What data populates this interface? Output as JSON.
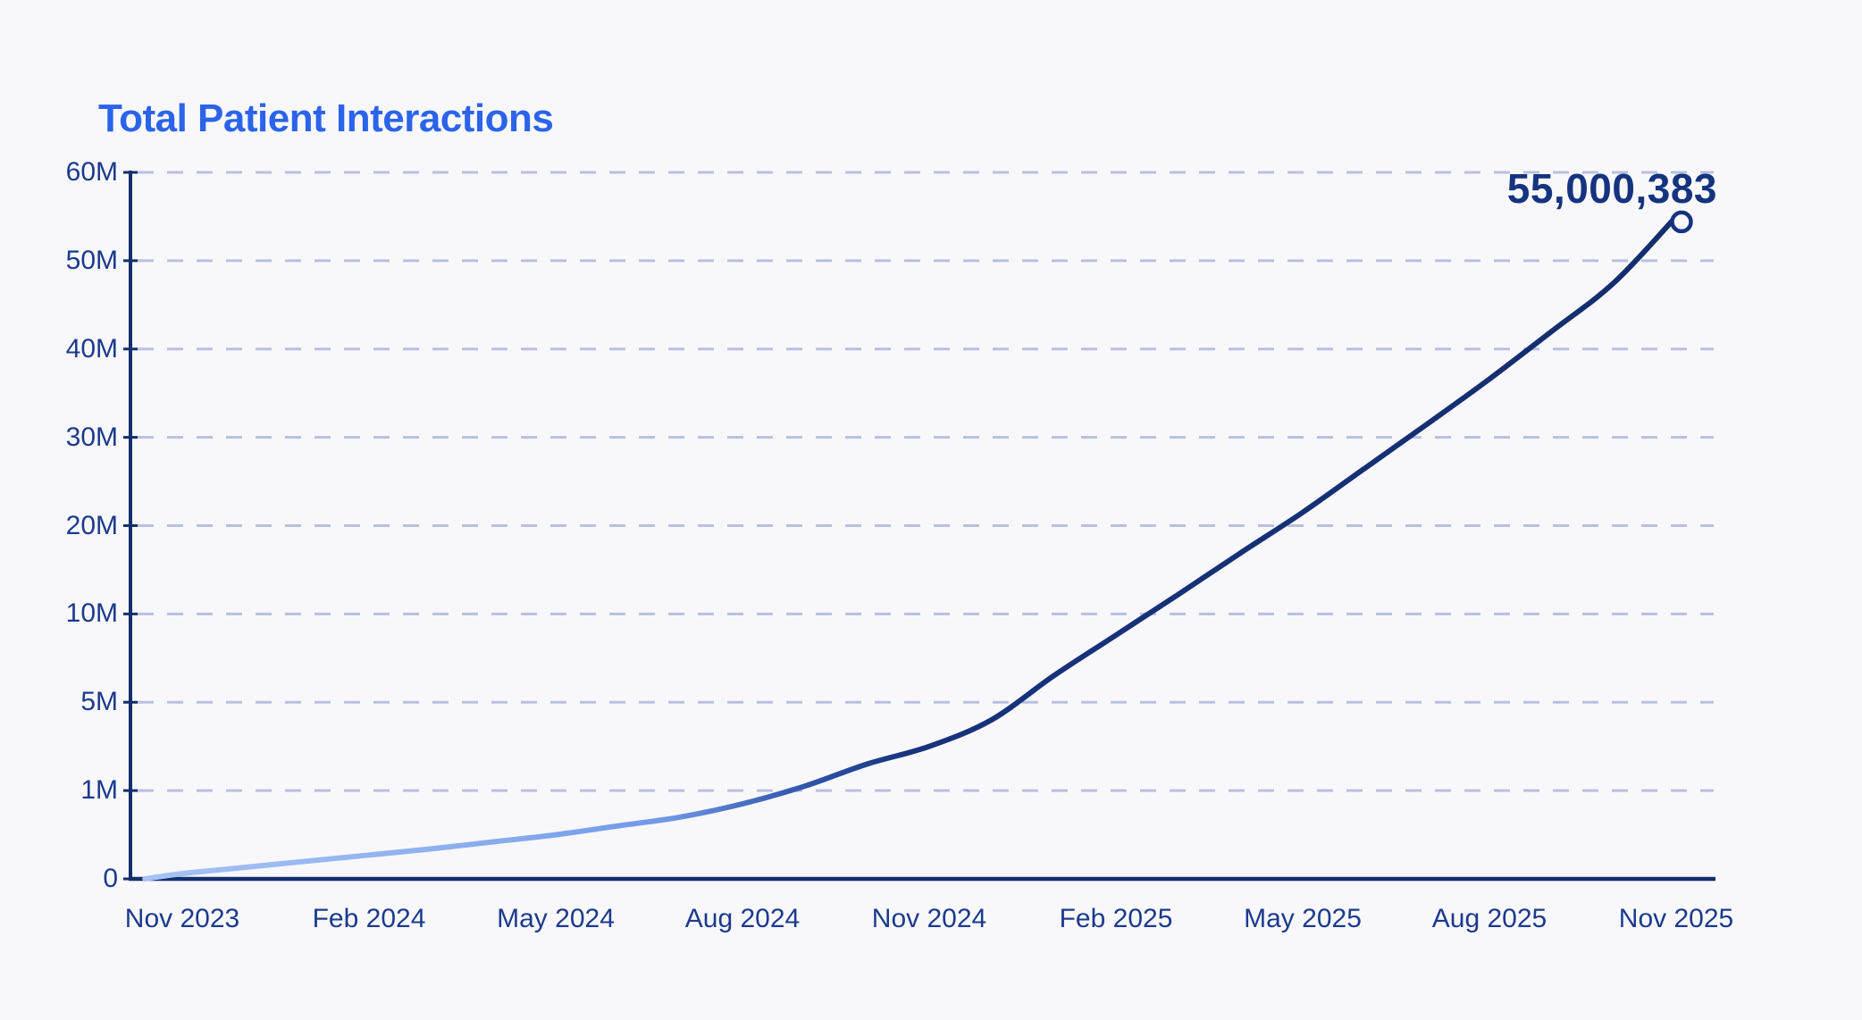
{
  "page": {
    "background": "#f8f8fc"
  },
  "header": {
    "title": "Total Patient Interactions",
    "title_color": "#2b63e9"
  },
  "chart_data": {
    "type": "line",
    "title": "Total Patient Interactions",
    "grid": "horizontal dashed gridlines at each y tick",
    "legend": "none",
    "y_scale": "piecewise: tick values equally spaced on screen",
    "y_ticks": [
      {
        "value": 60000000,
        "label": "60M"
      },
      {
        "value": 50000000,
        "label": "50M"
      },
      {
        "value": 40000000,
        "label": "40M"
      },
      {
        "value": 30000000,
        "label": "30M"
      },
      {
        "value": 20000000,
        "label": "20M"
      },
      {
        "value": 10000000,
        "label": "10M"
      },
      {
        "value": 5000000,
        "label": "5M"
      },
      {
        "value": 1000000,
        "label": "1M"
      },
      {
        "value": 0,
        "label": "0"
      }
    ],
    "x_unit": "months since Nov 2023",
    "x_ticks": [
      {
        "m": 0,
        "label": "Nov 2023"
      },
      {
        "m": 3,
        "label": "Feb 2024"
      },
      {
        "m": 6,
        "label": "May 2024"
      },
      {
        "m": 9,
        "label": "Aug 2024"
      },
      {
        "m": 12,
        "label": "Nov 2024"
      },
      {
        "m": 15,
        "label": "Feb 2025"
      },
      {
        "m": 18,
        "label": "May 2025"
      },
      {
        "m": 21,
        "label": "Aug 2025"
      },
      {
        "m": 24,
        "label": "Nov 2025"
      }
    ],
    "series": [
      {
        "name": "Total Patient Interactions",
        "end_label": "55,000,383",
        "end_value": 55000383,
        "end_marker": "open-circle",
        "points": [
          [
            -0.6,
            0
          ],
          [
            0,
            60000
          ],
          [
            1,
            130000
          ],
          [
            2,
            200000
          ],
          [
            3,
            270000
          ],
          [
            4,
            340000
          ],
          [
            5,
            420000
          ],
          [
            6,
            500000
          ],
          [
            7,
            600000
          ],
          [
            8,
            700000
          ],
          [
            9,
            850000
          ],
          [
            10,
            1200000
          ],
          [
            11,
            2200000
          ],
          [
            12,
            3000000
          ],
          [
            13,
            4200000
          ],
          [
            14,
            6500000
          ],
          [
            15,
            8800000
          ],
          [
            16,
            12200000
          ],
          [
            17,
            16900000
          ],
          [
            18,
            21500000
          ],
          [
            19,
            26500000
          ],
          [
            20,
            31500000
          ],
          [
            21,
            36600000
          ],
          [
            22,
            42000000
          ],
          [
            23,
            47500000
          ],
          [
            24,
            55000383
          ]
        ],
        "line_gradient": [
          {
            "offset": 0.0,
            "color": "#a7c3f6"
          },
          {
            "offset": 0.22,
            "color": "#8aadee"
          },
          {
            "offset": 0.34,
            "color": "#7098e6"
          },
          {
            "offset": 0.39,
            "color": "#4a70c4"
          },
          {
            "offset": 0.44,
            "color": "#2b51a5"
          },
          {
            "offset": 0.5,
            "color": "#17337d"
          },
          {
            "offset": 1.0,
            "color": "#132e6e"
          }
        ]
      }
    ],
    "colors": {
      "axis": "#152f6d",
      "tick_label": "#1b3a8c",
      "grid": "#b7c1de",
      "end_label": "#16337f",
      "marker_stroke": "#16337f",
      "marker_fill": "#f8f8fc"
    }
  }
}
